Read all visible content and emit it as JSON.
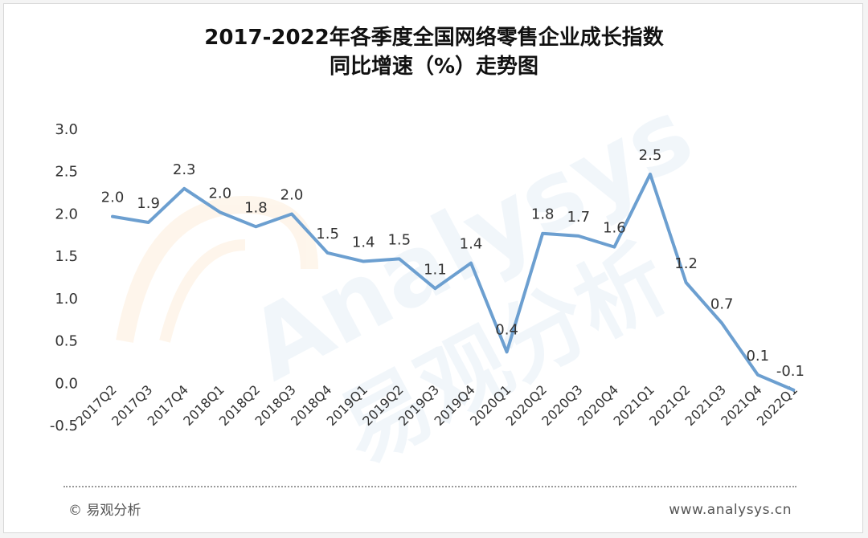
{
  "chart_data": {
    "type": "line",
    "title_line1": "2017-2022年各季度全国网络零售企业成长指数",
    "title_line2": "同比增速（%）走势图",
    "categories": [
      "2017Q2",
      "2017Q3",
      "2017Q4",
      "2018Q1",
      "2018Q2",
      "2018Q3",
      "2018Q4",
      "2019Q1",
      "2019Q2",
      "2019Q3",
      "2019Q4",
      "2020Q1",
      "2020Q2",
      "2020Q3",
      "2020Q4",
      "2021Q1",
      "2021Q2",
      "2021Q3",
      "2021Q4",
      "2022Q1"
    ],
    "values": [
      1.96,
      1.89,
      2.29,
      2.01,
      1.84,
      1.99,
      1.53,
      1.43,
      1.46,
      1.11,
      1.41,
      0.36,
      1.76,
      1.73,
      1.6,
      2.46,
      1.18,
      0.7,
      0.09,
      -0.09
    ],
    "data_labels": [
      "2.0",
      "1.9",
      "2.3",
      "2.0",
      "1.8",
      "2.0",
      "1.5",
      "1.4",
      "1.5",
      "1.1",
      "1.4",
      "0.4",
      "1.8",
      "1.7",
      "1.6",
      "2.5",
      "1.2",
      "0.7",
      "0.1",
      "-0.1"
    ],
    "y_ticks": [
      "-0.5",
      "0.0",
      "0.5",
      "1.0",
      "1.5",
      "2.0",
      "2.5",
      "3.0"
    ],
    "ylim": [
      -0.5,
      3.0
    ],
    "line_color": "#6c9fd0",
    "grid": false
  },
  "footer": {
    "copyright": "© 易观分析",
    "website": "www.analysys.cn"
  },
  "watermark": {
    "text_en": "Analysys",
    "text_cn": "易观分析"
  }
}
